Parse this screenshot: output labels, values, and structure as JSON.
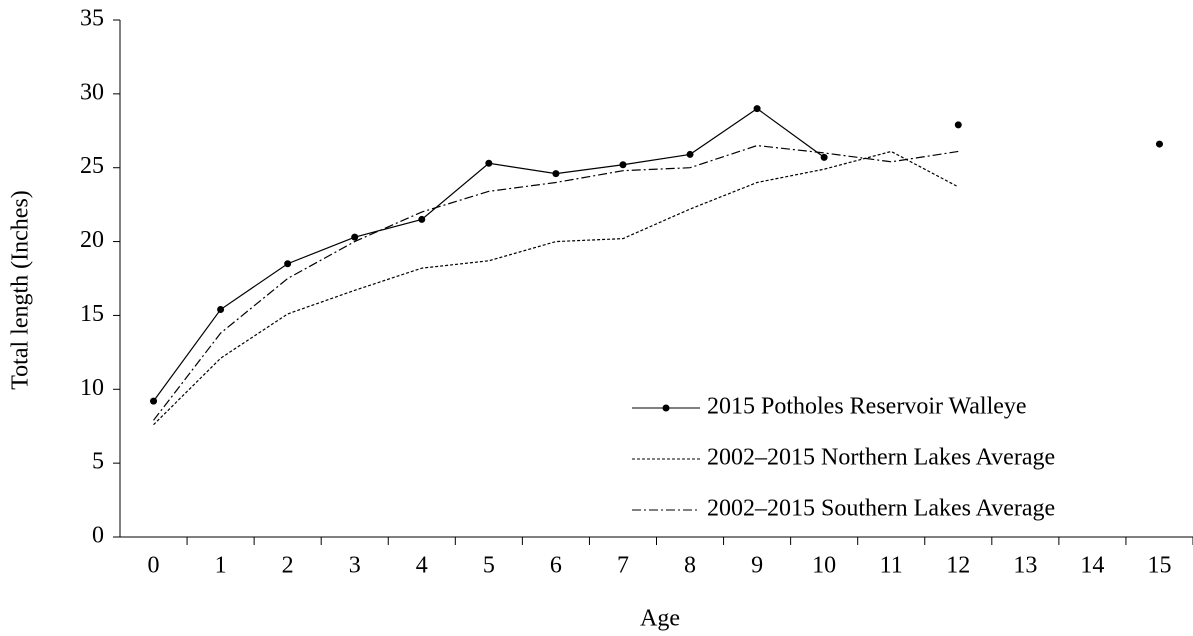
{
  "chart_data": {
    "type": "line",
    "x_label": "Age",
    "y_label": "Total length  (Inches)",
    "categories": [
      "0",
      "1",
      "2",
      "3",
      "4",
      "5",
      "6",
      "7",
      "8",
      "9",
      "10",
      "11",
      "12",
      "13",
      "14",
      "15"
    ],
    "ylim": [
      0,
      35
    ],
    "yticks": [
      0,
      5,
      10,
      15,
      20,
      25,
      30,
      35
    ],
    "grid": false,
    "legend": "lower right",
    "series": [
      {
        "name": "2015 Potholes Reservoir Walleye",
        "color": "#000000",
        "dash": "solid",
        "markers": true,
        "values": [
          9.2,
          15.4,
          18.5,
          20.3,
          21.5,
          25.3,
          24.6,
          25.2,
          25.9,
          29.0,
          25.7,
          null,
          27.9,
          null,
          null,
          26.6
        ]
      },
      {
        "name": "2002–2015 Northern Lakes Average",
        "color": "#000000",
        "dash": "dotted",
        "markers": false,
        "values": [
          7.6,
          12.1,
          15.1,
          16.7,
          18.2,
          18.7,
          20.0,
          20.2,
          22.2,
          24.0,
          24.9,
          26.1,
          23.7,
          null,
          null,
          null
        ]
      },
      {
        "name": "2002–2015 Southern Lakes Average",
        "color": "#000000",
        "dash": "dashdot",
        "markers": false,
        "values": [
          7.9,
          13.8,
          17.5,
          20.0,
          22.0,
          23.4,
          24.0,
          24.8,
          25.0,
          26.5,
          26.0,
          25.4,
          26.1,
          null,
          null,
          null
        ]
      }
    ]
  }
}
